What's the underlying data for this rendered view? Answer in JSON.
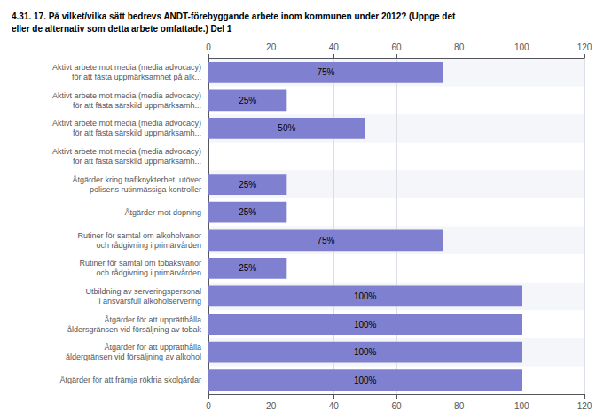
{
  "chart_data": {
    "type": "bar",
    "orientation": "horizontal",
    "title": "4.31. 17. På vilket/vilka sätt bedrevs ANDT-förebyggande arbete inom kommunen under 2012? (Uppge det\neller de alternativ som detta arbete omfattade.) Del 1",
    "categories": [
      "Aktivt arbete mot media (media advocacy)\nför att fästa uppmärksamhet på alk...",
      "Aktivt arbete mot media (media advocacy)\nför att fästa särskild uppmärksamh...",
      "Aktivt arbete mot media (media advocacy)\nför att fästa särskild uppmärksamh...",
      "Aktivt arbete mot media (media advocacy)\nför att fästa särskild uppmärksamh...",
      "Åtgärder kring trafiknykterhet, utöver\npolisens rutinmässiga kontroller",
      "Åtgärder mot dopning",
      "Rutiner för samtal om alkoholvanor\noch rådgivning i primärvården",
      "Rutiner för samtal om tobaksvanor\noch rådgivning i primärvården",
      "Utbildning av serveringspersonal\ni ansvarsfull alkoholservering",
      "Åtgärder för att upprätthålla\nåldersgränsen vid försäljning av tobak",
      "Åtgärder för att upprätthålla\nåldergränsen vid försäljning av alkohol",
      "Åtgärder för att främja rökfria skolgårdar"
    ],
    "values": [
      75,
      25,
      50,
      0,
      25,
      25,
      75,
      25,
      100,
      100,
      100,
      100
    ],
    "value_labels": [
      "75%",
      "25%",
      "50%",
      null,
      "25%",
      "25%",
      "75%",
      "25%",
      "100%",
      "100%",
      "100%",
      "100%"
    ],
    "data_labels": true,
    "color": "#8080d0",
    "xlim": [
      0,
      120
    ],
    "xticks": [
      0,
      20,
      40,
      60,
      80,
      100,
      120
    ],
    "grid": true
  }
}
